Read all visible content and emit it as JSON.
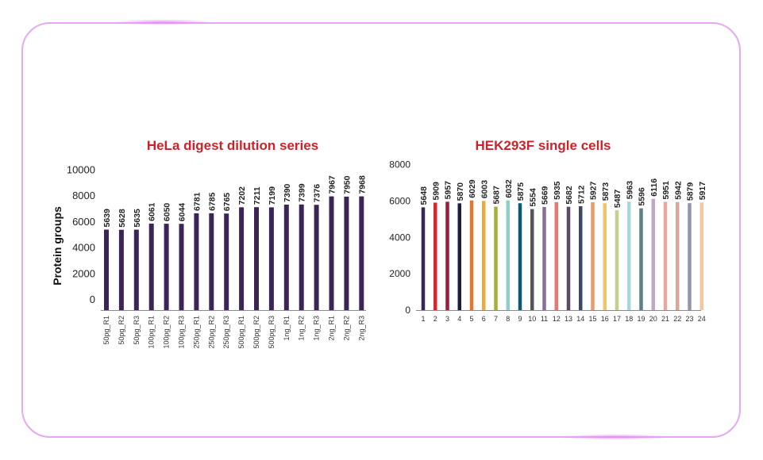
{
  "chart_data": [
    {
      "type": "bar",
      "title": "HeLa digest dilution series",
      "ylabel": "Protein groups",
      "ylim": [
        0,
        10000
      ],
      "yticks": [
        0,
        2000,
        4000,
        6000,
        8000,
        10000
      ],
      "categories": [
        "50pg_R1",
        "50pg_R2",
        "50pg_R3",
        "100pg_R1",
        "100pg_R2",
        "100pg_R3",
        "250pg_R1",
        "250pg_R2",
        "250pg_R3",
        "500pg_R1",
        "500pg_R2",
        "500pg_R3",
        "1ng_R1",
        "1ng_R2",
        "1ng_R3",
        "2ng_R1",
        "2ng_R2",
        "2ng_R3"
      ],
      "values": [
        5639,
        5628,
        5635,
        6061,
        6050,
        6044,
        6781,
        6785,
        6765,
        7202,
        7211,
        7199,
        7390,
        7399,
        7376,
        7967,
        7950,
        7968
      ],
      "bar_color": "#3b2456"
    },
    {
      "type": "bar",
      "title": "HEK293F single cells",
      "ylim": [
        0,
        8000
      ],
      "yticks": [
        0,
        2000,
        4000,
        6000,
        8000
      ],
      "categories": [
        "1",
        "2",
        "3",
        "4",
        "5",
        "6",
        "7",
        "8",
        "9",
        "10",
        "11",
        "12",
        "13",
        "14",
        "15",
        "16",
        "17",
        "18",
        "19",
        "20",
        "21",
        "22",
        "23",
        "24"
      ],
      "values": [
        5648,
        5909,
        5957,
        5870,
        6029,
        6003,
        5687,
        6032,
        5875,
        5554,
        5669,
        5935,
        5682,
        5712,
        5927,
        5873,
        5487,
        5963,
        5596,
        6116,
        5951,
        5942,
        5879,
        5917
      ],
      "colors": [
        "#3b2456",
        "#d6262e",
        "#9b1d3b",
        "#1b1f3b",
        "#e0762f",
        "#efa83a",
        "#a3b239",
        "#8fcfc8",
        "#0b5a73",
        "#555555",
        "#8a6d9b",
        "#e37b73",
        "#5a4a64",
        "#3d4768",
        "#e69d6c",
        "#f0c46a",
        "#c7d08a",
        "#a8d8d6",
        "#5d7f86",
        "#bfa8c6",
        "#e6a7a0",
        "#d9a796",
        "#9395ab",
        "#f5c7a0"
      ]
    }
  ]
}
